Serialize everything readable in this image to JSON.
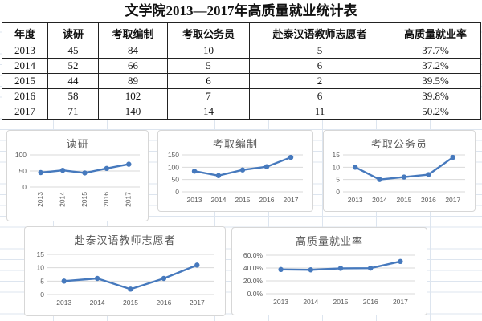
{
  "title": "文学院2013—2017年高质量就业统计表",
  "colors": {
    "line": "#4679bd",
    "plot_grid": "#d9d9d9",
    "tick_text": "#595959",
    "excel_grid": "#dde5ef",
    "table_border": "#222222"
  },
  "table": {
    "headers": [
      "年度",
      "读研",
      "考取编制",
      "考取公务员",
      "赴泰汉语教师志愿者",
      "高质量就业率"
    ],
    "rows": [
      [
        "2013",
        "45",
        "84",
        "10",
        "5",
        "37.7%"
      ],
      [
        "2014",
        "52",
        "66",
        "5",
        "6",
        "37.2%"
      ],
      [
        "2015",
        "44",
        "89",
        "6",
        "2",
        "39.5%"
      ],
      [
        "2016",
        "58",
        "102",
        "7",
        "6",
        "39.8%"
      ],
      [
        "2017",
        "71",
        "140",
        "14",
        "11",
        "50.2%"
      ]
    ]
  },
  "chart_data": [
    {
      "type": "line",
      "title": "读研",
      "x": [
        "2013",
        "2014",
        "2015",
        "2016",
        "2017"
      ],
      "values": [
        45,
        52,
        44,
        58,
        71
      ],
      "ylim": [
        0,
        100
      ],
      "yticks": [
        {
          "v": 0,
          "label": "0"
        },
        {
          "v": 50,
          "label": "50"
        },
        {
          "v": 100,
          "label": "100"
        }
      ],
      "x_label_rotation": 90,
      "grid": true,
      "legend": "none"
    },
    {
      "type": "line",
      "title": "考取编制",
      "x": [
        "2013",
        "2014",
        "2015",
        "2016",
        "2017"
      ],
      "values": [
        84,
        66,
        89,
        102,
        140
      ],
      "ylim": [
        0,
        150
      ],
      "yticks": [
        {
          "v": 0,
          "label": "0"
        },
        {
          "v": 50,
          "label": "50"
        },
        {
          "v": 100,
          "label": "100"
        },
        {
          "v": 150,
          "label": "150"
        }
      ],
      "x_label_rotation": 0,
      "grid": true,
      "legend": "none"
    },
    {
      "type": "line",
      "title": "考取公务员",
      "x": [
        "2013",
        "2014",
        "2015",
        "2016",
        "2017"
      ],
      "values": [
        10,
        5,
        6,
        7,
        14
      ],
      "ylim": [
        0,
        15
      ],
      "yticks": [
        {
          "v": 0,
          "label": "0"
        },
        {
          "v": 5,
          "label": "5"
        },
        {
          "v": 10,
          "label": "10"
        },
        {
          "v": 15,
          "label": "15"
        }
      ],
      "x_label_rotation": 0,
      "grid": true,
      "legend": "none"
    },
    {
      "type": "line",
      "title": "赴泰汉语教师志愿者",
      "x": [
        "2013",
        "2014",
        "2015",
        "2016",
        "2017"
      ],
      "values": [
        5,
        6,
        2,
        6,
        11
      ],
      "ylim": [
        0,
        15
      ],
      "yticks": [
        {
          "v": 0,
          "label": "0"
        },
        {
          "v": 5,
          "label": "5"
        },
        {
          "v": 10,
          "label": "10"
        },
        {
          "v": 15,
          "label": "15"
        }
      ],
      "x_label_rotation": 0,
      "grid": true,
      "legend": "none"
    },
    {
      "type": "line",
      "title": "高质量就业率",
      "x": [
        "2013",
        "2014",
        "2015",
        "2016",
        "2017"
      ],
      "values": [
        37.7,
        37.2,
        39.5,
        39.8,
        50.2
      ],
      "ylim": [
        0,
        60
      ],
      "yticks": [
        {
          "v": 0,
          "label": "0.0%"
        },
        {
          "v": 20,
          "label": "20.0%"
        },
        {
          "v": 40,
          "label": "40.0%"
        },
        {
          "v": 60,
          "label": "60.0%"
        }
      ],
      "x_label_rotation": 0,
      "grid": true,
      "legend": "none"
    }
  ]
}
